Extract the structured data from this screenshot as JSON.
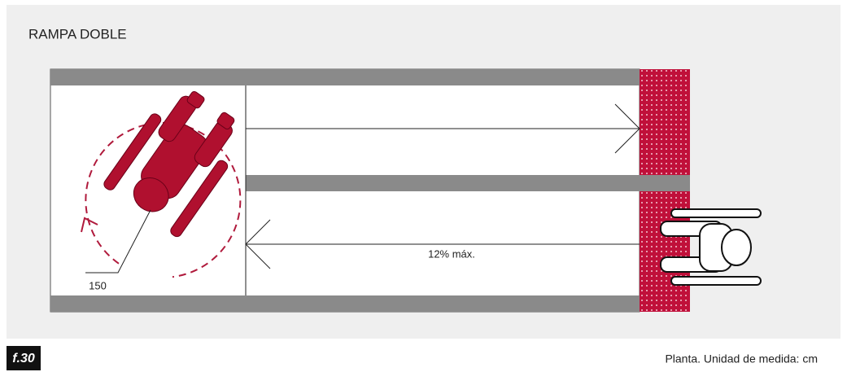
{
  "header": {
    "title": "RAMPA DOBLE"
  },
  "labels": {
    "diameter": "150",
    "slope": "12% máx."
  },
  "footer": {
    "figure": "f.30",
    "caption": "Planta. Unidad de medida: cm"
  }
}
